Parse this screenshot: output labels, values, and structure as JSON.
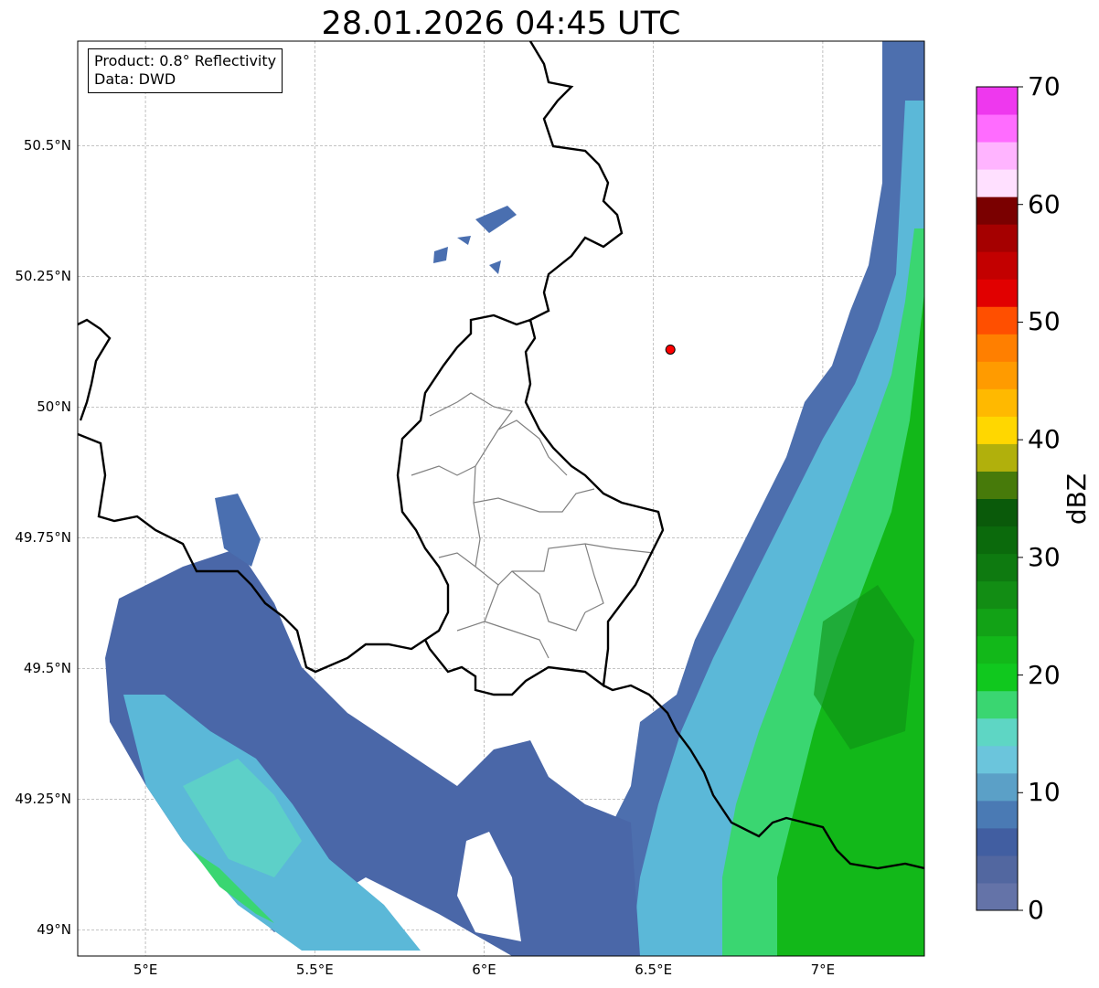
{
  "title": "28.01.2026 04:45 UTC",
  "info": {
    "product": "Product: 0.8° Reflectivity",
    "data_source": "Data: DWD"
  },
  "lat_ticks": [
    {
      "value": 50.5,
      "label": "50.5°N"
    },
    {
      "value": 50.25,
      "label": "50.25°N"
    },
    {
      "value": 50.0,
      "label": "50°N"
    },
    {
      "value": 49.75,
      "label": "49.75°N"
    },
    {
      "value": 49.5,
      "label": "49.5°N"
    },
    {
      "value": 49.25,
      "label": "49.25°N"
    },
    {
      "value": 49.0,
      "label": "49°N"
    }
  ],
  "lon_ticks": [
    {
      "value": 5.0,
      "label": "5°E"
    },
    {
      "value": 5.5,
      "label": "5.5°E"
    },
    {
      "value": 6.0,
      "label": "6°E"
    },
    {
      "value": 6.5,
      "label": "6.5°E"
    },
    {
      "value": 7.0,
      "label": "7°E"
    }
  ],
  "map_extent": {
    "lon": [
      4.8,
      7.3
    ],
    "lat": [
      48.95,
      50.7
    ]
  },
  "radar_site": {
    "lon": 6.55,
    "lat": 50.11,
    "color": "#ff0000"
  },
  "colorbar": {
    "label": "dBZ",
    "range": [
      0,
      70
    ],
    "ticks": [
      "0",
      "10",
      "20",
      "30",
      "40",
      "50",
      "60",
      "70"
    ],
    "colors": [
      "#6473a8",
      "#5267a0",
      "#415ea1",
      "#4a7ab4",
      "#5ba0c7",
      "#6bc5dc",
      "#5ed6c4",
      "#3ad671",
      "#10c81e",
      "#12b819",
      "#12a216",
      "#128d14",
      "#0e7a10",
      "#0b6a0c",
      "#0a5a0a",
      "#477a0a",
      "#b1b00c",
      "#ffd700",
      "#ffb900",
      "#ff9b00",
      "#ff7f00",
      "#ff4f00",
      "#e10000",
      "#c30000",
      "#a50000",
      "#7a0000",
      "#ffe0ff",
      "#ffb4ff",
      "#ff6cff",
      "#ee38ee"
    ]
  }
}
